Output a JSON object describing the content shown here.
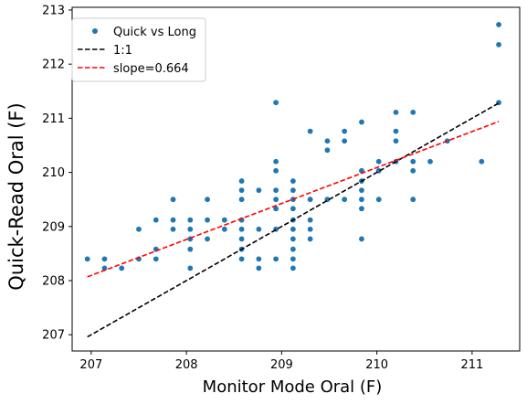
{
  "chart_data": {
    "type": "scatter",
    "title": "",
    "xlabel": "Monitor Mode Oral (F)",
    "ylabel": "Quick-Read Oral (F)",
    "xlim": [
      206.8,
      211.5
    ],
    "ylim": [
      206.7,
      213.05
    ],
    "xticks": [
      207,
      208,
      209,
      210,
      211
    ],
    "yticks": [
      207,
      208,
      209,
      210,
      211,
      212,
      213
    ],
    "grid": false,
    "legend_position": "upper-left",
    "series": [
      {
        "name": "Quick vs Long",
        "kind": "markers",
        "color": "#1f77b4",
        "points": [
          [
            206.96,
            208.4
          ],
          [
            207.14,
            208.4
          ],
          [
            207.14,
            208.23
          ],
          [
            207.32,
            208.23
          ],
          [
            207.5,
            208.4
          ],
          [
            207.5,
            208.95
          ],
          [
            207.68,
            208.4
          ],
          [
            207.68,
            208.58
          ],
          [
            207.68,
            209.12
          ],
          [
            207.86,
            209.12
          ],
          [
            207.86,
            208.95
          ],
          [
            207.86,
            209.5
          ],
          [
            208.04,
            209.12
          ],
          [
            208.04,
            208.95
          ],
          [
            208.04,
            208.77
          ],
          [
            208.04,
            208.58
          ],
          [
            208.04,
            208.23
          ],
          [
            208.22,
            209.5
          ],
          [
            208.22,
            209.12
          ],
          [
            208.22,
            208.77
          ],
          [
            208.4,
            209.12
          ],
          [
            208.4,
            208.95
          ],
          [
            208.58,
            209.84
          ],
          [
            208.58,
            209.67
          ],
          [
            208.58,
            209.5
          ],
          [
            208.58,
            209.12
          ],
          [
            208.58,
            208.95
          ],
          [
            208.58,
            208.77
          ],
          [
            208.58,
            208.58
          ],
          [
            208.58,
            208.4
          ],
          [
            208.76,
            209.67
          ],
          [
            208.76,
            208.95
          ],
          [
            208.76,
            208.4
          ],
          [
            208.76,
            208.23
          ],
          [
            208.94,
            211.29
          ],
          [
            208.94,
            210.2
          ],
          [
            208.94,
            210.03
          ],
          [
            208.94,
            209.67
          ],
          [
            208.94,
            209.5
          ],
          [
            208.94,
            209.33
          ],
          [
            208.94,
            208.95
          ],
          [
            208.94,
            208.4
          ],
          [
            209.12,
            209.84
          ],
          [
            209.12,
            209.67
          ],
          [
            209.12,
            209.5
          ],
          [
            209.12,
            209.33
          ],
          [
            209.12,
            209.12
          ],
          [
            209.12,
            208.95
          ],
          [
            209.12,
            208.77
          ],
          [
            209.12,
            208.58
          ],
          [
            209.12,
            208.4
          ],
          [
            209.12,
            208.23
          ],
          [
            209.3,
            210.76
          ],
          [
            209.3,
            209.5
          ],
          [
            209.3,
            209.12
          ],
          [
            209.3,
            208.95
          ],
          [
            209.3,
            208.77
          ],
          [
            209.48,
            210.58
          ],
          [
            209.48,
            210.41
          ],
          [
            209.48,
            209.5
          ],
          [
            209.66,
            210.76
          ],
          [
            209.66,
            210.58
          ],
          [
            209.66,
            209.5
          ],
          [
            209.84,
            210.93
          ],
          [
            209.84,
            210.03
          ],
          [
            209.84,
            209.84
          ],
          [
            209.84,
            209.67
          ],
          [
            209.84,
            209.5
          ],
          [
            209.84,
            209.33
          ],
          [
            209.84,
            208.77
          ],
          [
            210.02,
            210.2
          ],
          [
            210.02,
            210.03
          ],
          [
            210.02,
            209.5
          ],
          [
            210.2,
            211.11
          ],
          [
            210.2,
            210.76
          ],
          [
            210.2,
            210.58
          ],
          [
            210.2,
            210.2
          ],
          [
            210.38,
            211.11
          ],
          [
            210.38,
            210.2
          ],
          [
            210.38,
            210.03
          ],
          [
            210.38,
            209.5
          ],
          [
            210.56,
            210.2
          ],
          [
            210.74,
            210.58
          ],
          [
            211.1,
            210.2
          ],
          [
            211.28,
            212.73
          ],
          [
            211.28,
            212.36
          ],
          [
            211.28,
            211.29
          ]
        ]
      },
      {
        "name": "1:1",
        "kind": "dashed-line",
        "color": "#000000",
        "points": [
          [
            206.96,
            206.96
          ],
          [
            211.28,
            211.28
          ]
        ]
      },
      {
        "name": "slope=0.664",
        "kind": "dashed-line",
        "color": "#ff0000",
        "points": [
          [
            206.96,
            208.07
          ],
          [
            211.28,
            210.94
          ]
        ]
      }
    ]
  }
}
